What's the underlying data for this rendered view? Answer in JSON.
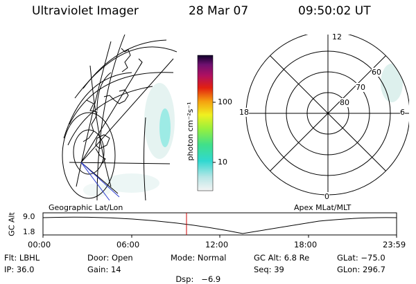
{
  "header": {
    "instrument": "Ultraviolet Imager",
    "date": "28 Mar 07",
    "time": "09:50:02 UT"
  },
  "colorbar": {
    "unit_label": "photon cm⁻²s⁻¹",
    "ticks": [
      "100",
      "10"
    ]
  },
  "polar_plot": {
    "mlt_labels": {
      "top": "12",
      "left": "18",
      "right": "6",
      "bottom": "0"
    },
    "lat_labels": [
      "60",
      "70",
      "80"
    ]
  },
  "panel_labels": {
    "left": "Geographic Lat/Lon",
    "right": "Apex MLat/MLT"
  },
  "altitude_plot": {
    "y_label": "GC Alt",
    "y_ticks": [
      "9.0",
      "1.8"
    ],
    "x_ticks": [
      "00:00",
      "06:00",
      "12:00",
      "18:00",
      "23:59"
    ],
    "marker_color": "#cc0000"
  },
  "info": {
    "row1": [
      {
        "label": "Flt:",
        "value": "LBHL"
      },
      {
        "label": "Door:",
        "value": "Open"
      },
      {
        "label": "Mode:",
        "value": "Normal"
      },
      {
        "label": "GC Alt:",
        "value": "6.8 Re"
      },
      {
        "label": "GLat:",
        "value": "−75.0"
      }
    ],
    "row2": [
      {
        "label": "IP:",
        "value": "36.0"
      },
      {
        "label": "Gain:",
        "value": "14"
      },
      {
        "label": "Dsp:",
        "value": "  −6.9"
      },
      {
        "label": "Seq:",
        "value": "39"
      },
      {
        "label": "GLon:",
        "value": "296.7"
      }
    ]
  }
}
